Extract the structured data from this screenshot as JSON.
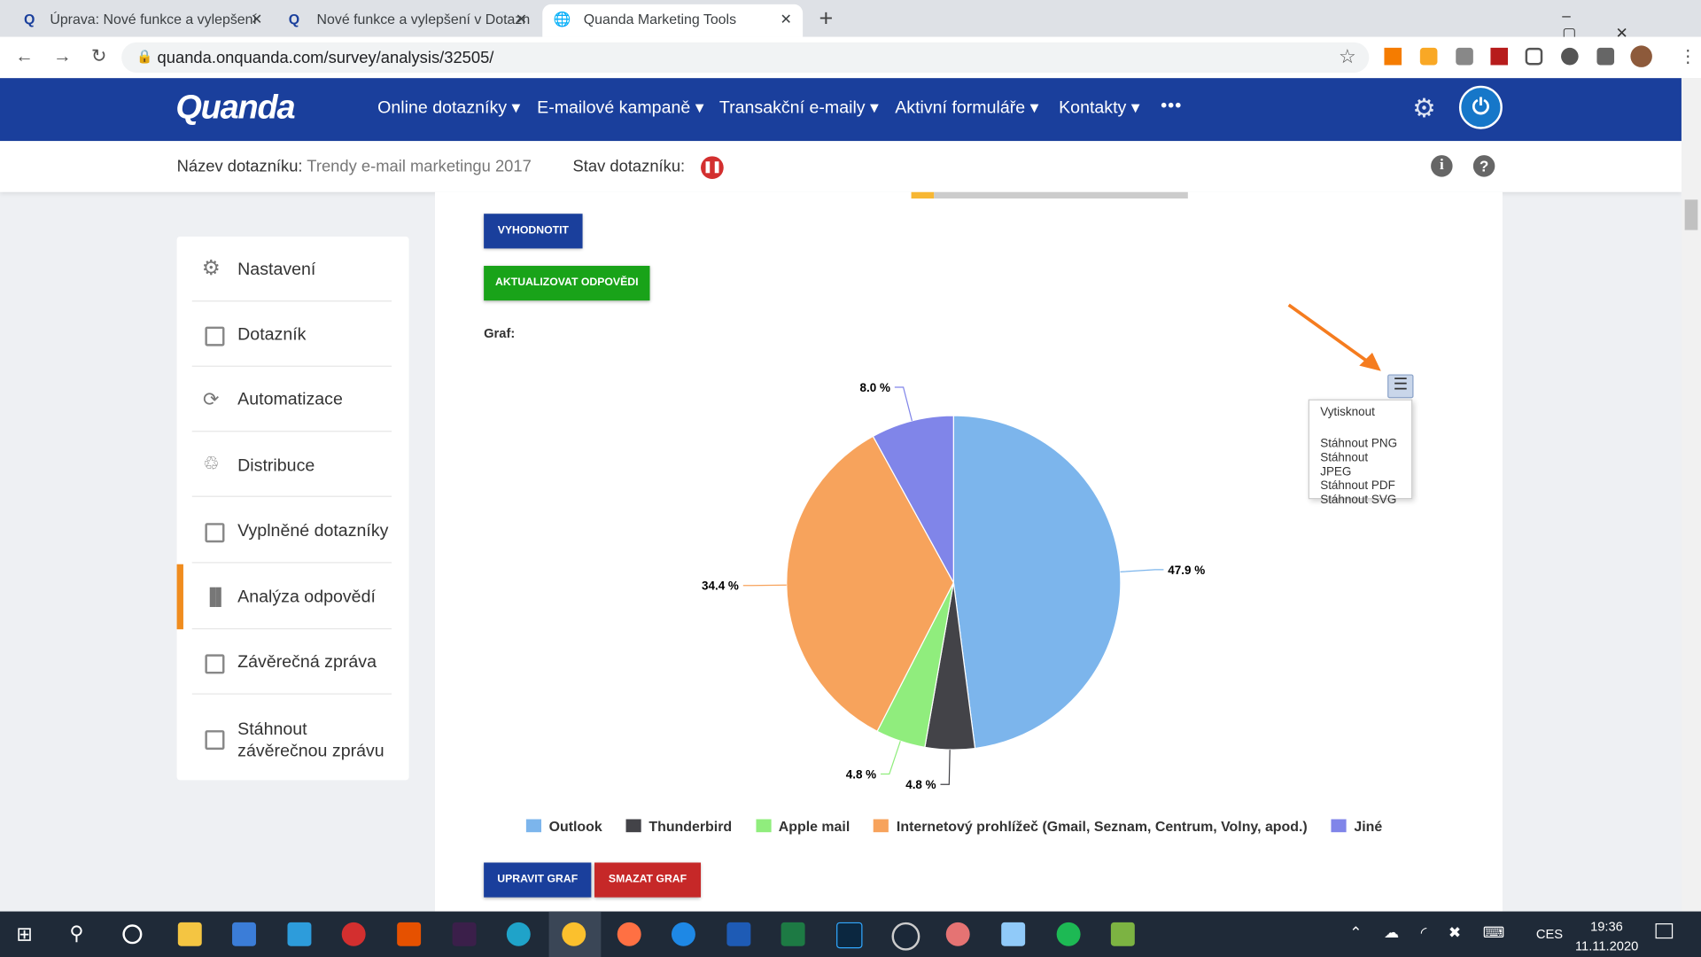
{
  "browser": {
    "tabs": [
      "Úprava: Nové funkce a vylepšení",
      "Nové funkce a vylepšení v Dotazn",
      "Quanda Marketing Tools"
    ],
    "url": "quanda.onquanda.com/survey/analysis/32505/"
  },
  "header": {
    "logo": "Quanda",
    "nav": [
      "Online dotazníky",
      "E-mailové kampaně",
      "Transakční e-maily",
      "Aktivní formuláře",
      "Kontakty"
    ]
  },
  "survey_bar": {
    "name_label": "Název dotazníku:",
    "name": "Trendy e-mail marketingu 2017",
    "status_label": "Stav dotazníku:"
  },
  "sidebar": [
    "Nastavení",
    "Dotazník",
    "Automatizace",
    "Distribuce",
    "Vyplněné dotazníky",
    "Analýza odpovědí",
    "Závěrečná zpráva",
    "Stáhnout závěrečnou zprávu"
  ],
  "buttons": {
    "evaluate": "VYHODNOTIT",
    "update": "AKTUALIZOVAT ODPOVĚDI",
    "edit": "UPRAVIT GRAF",
    "delete": "SMAZAT GRAF"
  },
  "graph_label": "Graf:",
  "export_menu": [
    "Vytisknout",
    "Stáhnout PNG",
    "Stáhnout JPEG",
    "Stáhnout PDF",
    "Stáhnout SVG"
  ],
  "chart_data": {
    "type": "pie",
    "categories": [
      "Outlook",
      "Thunderbird",
      "Apple mail",
      "Internetový prohlížeč (Gmail, Seznam, Centrum, Volny, apod.)",
      "Jiné"
    ],
    "values": [
      47.9,
      4.8,
      4.8,
      34.4,
      8.0
    ],
    "value_labels": [
      "47.9 %",
      "4.8 %",
      "4.8 %",
      "34.4 %",
      "8.0 %"
    ],
    "colors": [
      "#7cb5ec",
      "#434348",
      "#90ed7d",
      "#f7a35c",
      "#8085e9"
    ]
  },
  "taskbar": {
    "lang": "CES",
    "time": "19:36",
    "date": "11.11.2020"
  }
}
